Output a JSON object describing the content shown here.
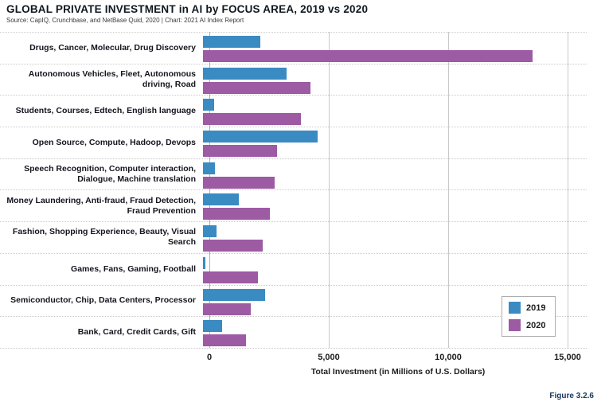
{
  "header": {
    "title": "GLOBAL PRIVATE INVESTMENT in AI by FOCUS AREA, 2019 vs 2020",
    "source": "Source: CapIQ, Crunchbase, and NetBase Quid, 2020 | Chart: 2021 AI Index Report"
  },
  "figure_caption": "Figure 3.2.6",
  "colors": {
    "series_2019": "#3a8bc2",
    "series_2020": "#9c5ba3",
    "gridline": "#c9c9c9",
    "title_text": "#101820",
    "caption_text": "#17365d"
  },
  "chart_data": {
    "type": "bar",
    "orientation": "horizontal",
    "title": "GLOBAL PRIVATE INVESTMENT in AI by FOCUS AREA, 2019 vs 2020",
    "categories": [
      "Drugs, Cancer, Molecular, Drug Discovery",
      "Autonomous Vehicles, Fleet, Autonomous driving, Road",
      "Students, Courses, Edtech, English language",
      "Open Source, Compute, Hadoop, Devops",
      "Speech Recognition, Computer interaction, Dialogue, Machine translation",
      "Money Laundering, Anti-fraud, Fraud Detection, Fraud Prevention",
      "Fashion, Shopping Experience, Beauty, Visual Search",
      "Games, Fans, Gaming, Football",
      "Semiconductor, Chip, Data Centers, Processor",
      "Bank, Card, Credit Cards, Gift"
    ],
    "series": [
      {
        "name": "2019",
        "color": "#3a8bc2",
        "values": [
          2400,
          3500,
          450,
          4800,
          500,
          1500,
          550,
          100,
          2600,
          800
        ]
      },
      {
        "name": "2020",
        "color": "#9c5ba3",
        "values": [
          13800,
          4500,
          4100,
          3100,
          3000,
          2800,
          2500,
          2300,
          2000,
          1800
        ]
      }
    ],
    "xlabel": "Total Investment (in Millions of U.S. Dollars)",
    "xlim": [
      0,
      15000
    ],
    "xticks": [
      0,
      5000,
      10000,
      15000
    ],
    "xtick_labels": [
      "0",
      "5,000",
      "10,000",
      "15,000"
    ],
    "grid": true,
    "legend_position": "lower-right"
  }
}
